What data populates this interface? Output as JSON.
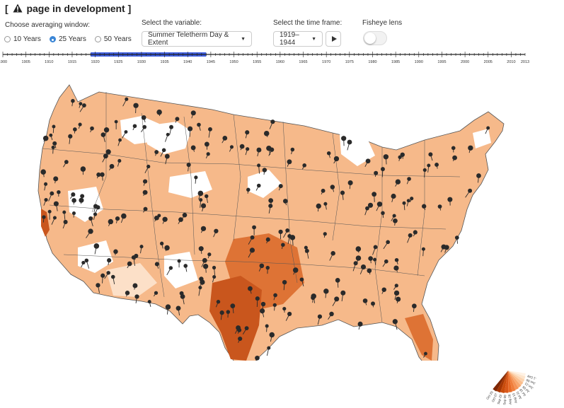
{
  "header": {
    "title_prefix": "[",
    "title_text": "page in development ]"
  },
  "controls": {
    "averaging_label": "Choose averaging window:",
    "averaging_options": [
      "10 Years",
      "25 Years",
      "50 Years"
    ],
    "averaging_selected": "25 Years",
    "variable_label": "Select the variable:",
    "variable_value": "Summer Teletherm Day & Extent",
    "timeframe_label": "Select the time frame:",
    "timeframe_value": "1919–1944",
    "fisheye_label": "Fisheye lens",
    "fisheye_on": false
  },
  "timeline": {
    "ticks": [
      "1900",
      "1905",
      "1910",
      "1915",
      "1920",
      "1925",
      "1930",
      "1935",
      "1940",
      "1945",
      "1950",
      "1955",
      "1960",
      "1965",
      "1970",
      "1975",
      "1980",
      "1985",
      "1990",
      "1995",
      "2000",
      "2005",
      "2010",
      "2013"
    ],
    "selected_start": "1919",
    "selected_end": "1944",
    "selection_color": "#3f5fe0"
  },
  "map": {
    "colors": {
      "land_light": "#f6b98a",
      "land_mid": "#ee9a62",
      "land_dark": "#de7335",
      "land_darker": "#c9561d",
      "blank": "#ffffff",
      "pin": "#2a2a2a",
      "border": "#555555"
    }
  },
  "legend": {
    "labels": [
      "Oct 20",
      "Oct 07",
      "Sep 22",
      "Sep 09",
      "Aug 26",
      "Aug 13",
      "Jul 31",
      "Jul 18",
      "Jul 05",
      "Jun 21",
      "Jun 08",
      "-1 Day"
    ],
    "colors": [
      "#7f2704",
      "#a63603",
      "#c94c0c",
      "#d9581a",
      "#e86a26",
      "#f07e3c",
      "#f59356",
      "#f8a86f",
      "#fabe8d",
      "#fcd3ae",
      "#fde4cb",
      "#fff2e4"
    ]
  }
}
